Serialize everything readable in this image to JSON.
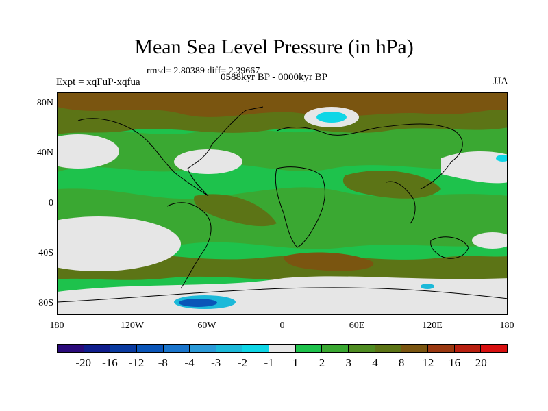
{
  "title": "Mean Sea Level Pressure (in hPa)",
  "stats": "rmsd= 2.80389 diff= 2.39667",
  "experiment": "Expt = xqFuP-xqfua",
  "period": "0588kyr BP - 0000kyr BP",
  "season": "JJA",
  "lat_labels": [
    "80N",
    "40N",
    "0",
    "40S",
    "80S"
  ],
  "lon_labels": [
    "180",
    "120W",
    "60W",
    "0",
    "60E",
    "120E",
    "180"
  ],
  "colorbar": {
    "colors": [
      "#2a0a7a",
      "#0f1d8c",
      "#0a3aa0",
      "#0a55b8",
      "#1a75cc",
      "#2b9ad8",
      "#1cb9d9",
      "#0fd6e6",
      "#e6e6e6",
      "#1ec24c",
      "#3aa832",
      "#4f8c22",
      "#5c7416",
      "#7a5510",
      "#9a3810",
      "#b82010",
      "#d81010"
    ],
    "labels": [
      "-20",
      "-16",
      "-12",
      "-8",
      "-4",
      "-3",
      "-2",
      "-1",
      "1",
      "2",
      "3",
      "4",
      "8",
      "12",
      "16",
      "20"
    ]
  }
}
